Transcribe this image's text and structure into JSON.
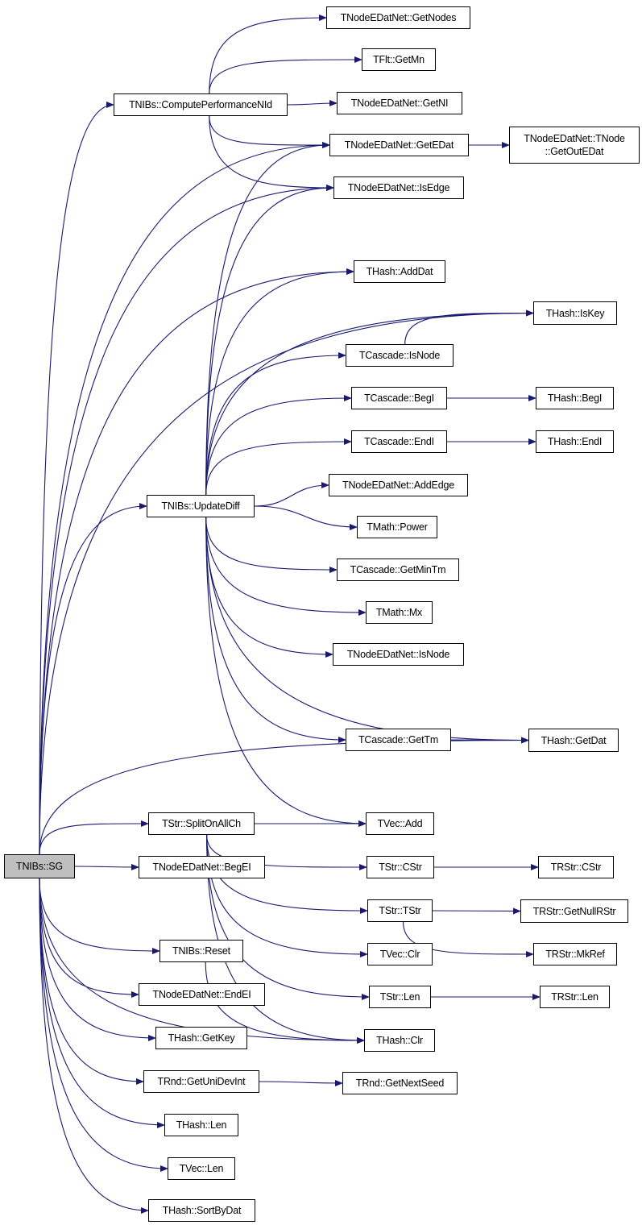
{
  "colors": {
    "edge": "#191970",
    "root_fill": "#bfbfbf",
    "node_fill": "#ffffff",
    "border": "#000000"
  },
  "nodes": [
    {
      "id": "sg",
      "label": "TNIBs::SG",
      "root": true
    },
    {
      "id": "cpn",
      "label": "TNIBs::ComputePerformanceNId"
    },
    {
      "id": "getnodes",
      "label": "TNodeEDatNet::GetNodes"
    },
    {
      "id": "getmn",
      "label": "TFlt::GetMn"
    },
    {
      "id": "getni",
      "label": "TNodeEDatNet::GetNI"
    },
    {
      "id": "getedat",
      "label": "TNodeEDatNet::GetEDat"
    },
    {
      "id": "getoutedat",
      "label": "TNodeEDatNet::TNode\n::GetOutEDat"
    },
    {
      "id": "isedge",
      "label": "TNodeEDatNet::IsEdge"
    },
    {
      "id": "adddat",
      "label": "THash::AddDat"
    },
    {
      "id": "iskey",
      "label": "THash::IsKey"
    },
    {
      "id": "cisnode",
      "label": "TCascade::IsNode"
    },
    {
      "id": "cbegi",
      "label": "TCascade::BegI"
    },
    {
      "id": "hbegi",
      "label": "THash::BegI"
    },
    {
      "id": "cendi",
      "label": "TCascade::EndI"
    },
    {
      "id": "hendi",
      "label": "THash::EndI"
    },
    {
      "id": "updatediff",
      "label": "TNIBs::UpdateDiff"
    },
    {
      "id": "addedge",
      "label": "TNodeEDatNet::AddEdge"
    },
    {
      "id": "power",
      "label": "TMath::Power"
    },
    {
      "id": "getmintm",
      "label": "TCascade::GetMinTm"
    },
    {
      "id": "mx",
      "label": "TMath::Mx"
    },
    {
      "id": "nisnode",
      "label": "TNodeEDatNet::IsNode"
    },
    {
      "id": "gettm",
      "label": "TCascade::GetTm"
    },
    {
      "id": "getdat",
      "label": "THash::GetDat"
    },
    {
      "id": "vadd",
      "label": "TVec::Add"
    },
    {
      "id": "split",
      "label": "TStr::SplitOnAllCh"
    },
    {
      "id": "begei",
      "label": "TNodeEDatNet::BegEI"
    },
    {
      "id": "scstr",
      "label": "TStr::CStr"
    },
    {
      "id": "rcstr",
      "label": "TRStr::CStr"
    },
    {
      "id": "ststr",
      "label": "TStr::TStr"
    },
    {
      "id": "nullr",
      "label": "TRStr::GetNullRStr"
    },
    {
      "id": "mkref",
      "label": "TRStr::MkRef"
    },
    {
      "id": "vclr",
      "label": "TVec::Clr"
    },
    {
      "id": "slen",
      "label": "TStr::Len"
    },
    {
      "id": "rlen",
      "label": "TRStr::Len"
    },
    {
      "id": "hclr",
      "label": "THash::Clr"
    },
    {
      "id": "reset",
      "label": "TNIBs::Reset"
    },
    {
      "id": "endei",
      "label": "TNodeEDatNet::EndEI"
    },
    {
      "id": "getkey",
      "label": "THash::GetKey"
    },
    {
      "id": "unidev",
      "label": "TRnd::GetUniDevInt"
    },
    {
      "id": "nextseed",
      "label": "TRnd::GetNextSeed"
    },
    {
      "id": "hlen",
      "label": "THash::Len"
    },
    {
      "id": "vlen",
      "label": "TVec::Len"
    },
    {
      "id": "sortbydat",
      "label": "THash::SortByDat"
    }
  ],
  "edges": [
    [
      "sg",
      "cpn"
    ],
    [
      "sg",
      "getedat"
    ],
    [
      "sg",
      "isedge"
    ],
    [
      "sg",
      "iskey"
    ],
    [
      "sg",
      "adddat"
    ],
    [
      "sg",
      "updatediff"
    ],
    [
      "sg",
      "getdat"
    ],
    [
      "sg",
      "split"
    ],
    [
      "sg",
      "begei"
    ],
    [
      "sg",
      "hclr"
    ],
    [
      "sg",
      "reset"
    ],
    [
      "sg",
      "endei"
    ],
    [
      "sg",
      "getkey"
    ],
    [
      "sg",
      "unidev"
    ],
    [
      "sg",
      "hlen"
    ],
    [
      "sg",
      "vlen"
    ],
    [
      "sg",
      "sortbydat"
    ],
    [
      "cpn",
      "getnodes"
    ],
    [
      "cpn",
      "getmn"
    ],
    [
      "cpn",
      "getni"
    ],
    [
      "cpn",
      "getedat"
    ],
    [
      "cpn",
      "isedge"
    ],
    [
      "getedat",
      "getoutedat"
    ],
    [
      "updatediff",
      "getedat"
    ],
    [
      "updatediff",
      "isedge"
    ],
    [
      "updatediff",
      "adddat"
    ],
    [
      "updatediff",
      "iskey"
    ],
    [
      "updatediff",
      "cisnode"
    ],
    [
      "updatediff",
      "cbegi"
    ],
    [
      "updatediff",
      "cendi"
    ],
    [
      "updatediff",
      "addedge"
    ],
    [
      "updatediff",
      "power"
    ],
    [
      "updatediff",
      "getmintm"
    ],
    [
      "updatediff",
      "mx"
    ],
    [
      "updatediff",
      "nisnode"
    ],
    [
      "updatediff",
      "getdat"
    ],
    [
      "updatediff",
      "gettm"
    ],
    [
      "updatediff",
      "vadd"
    ],
    [
      "cisnode",
      "iskey"
    ],
    [
      "cbegi",
      "hbegi"
    ],
    [
      "cendi",
      "hendi"
    ],
    [
      "gettm",
      "getdat"
    ],
    [
      "split",
      "vadd"
    ],
    [
      "split",
      "scstr"
    ],
    [
      "split",
      "ststr"
    ],
    [
      "split",
      "vclr"
    ],
    [
      "split",
      "slen"
    ],
    [
      "split",
      "hclr"
    ],
    [
      "scstr",
      "rcstr"
    ],
    [
      "ststr",
      "nullr"
    ],
    [
      "ststr",
      "mkref"
    ],
    [
      "slen",
      "rlen"
    ],
    [
      "reset",
      "hclr"
    ],
    [
      "unidev",
      "nextseed"
    ]
  ]
}
